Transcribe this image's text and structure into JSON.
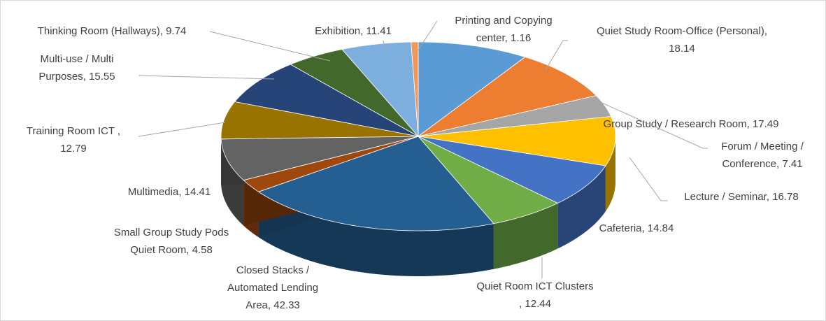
{
  "chart_data": {
    "type": "pie3d",
    "values": [
      18.14,
      17.49,
      7.41,
      16.78,
      14.84,
      12.44,
      42.33,
      4.58,
      14.41,
      12.79,
      15.55,
      9.74,
      11.41,
      1.16
    ],
    "value_labels": [
      [
        "Quiet Study Room-Office (Personal),",
        "18.14"
      ],
      [
        "Group Study / Research Room, 17.49"
      ],
      [
        "Forum / Meeting /",
        "Conference, 7.41"
      ],
      [
        "Lecture / Seminar, 16.78"
      ],
      [
        "Cafeteria, 14.84"
      ],
      [
        "Quiet Room ICT Clusters",
        ", 12.44"
      ],
      [
        "Closed Stacks /",
        "Automated Lending",
        "Area, 42.33"
      ],
      [
        "Small Group Study Pods",
        "Quiet Room, 4.58"
      ],
      [
        "Multimedia, 14.41"
      ],
      [
        "Training  Room ICT ,",
        "12.79"
      ],
      [
        "Multi-use / Multi",
        "Purposes, 15.55"
      ],
      [
        "Thinking Room (Hallways), 9.74"
      ],
      [
        "Exhibition, 11.41"
      ],
      [
        "Printing and Copying",
        "center, 1.16"
      ]
    ],
    "colors": [
      "#5b9bd5",
      "#ed7d31",
      "#a5a5a5",
      "#ffc000",
      "#4472c4",
      "#70ad47",
      "#255e91",
      "#9e480e",
      "#636363",
      "#997300",
      "#264478",
      "#43682b",
      "#7cafdd",
      "#f1975a"
    ]
  }
}
